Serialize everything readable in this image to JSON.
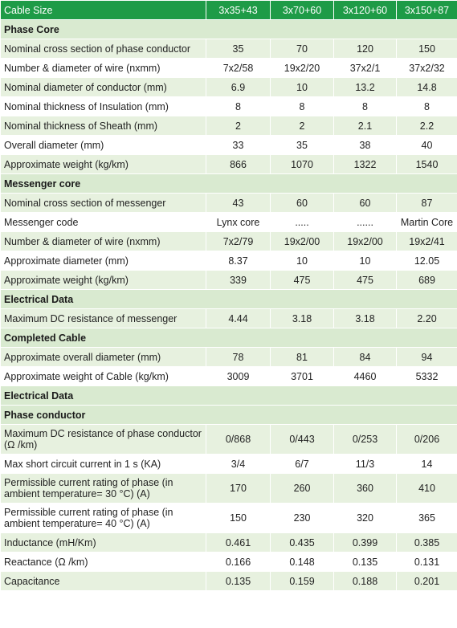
{
  "header": [
    "Cable Size",
    "3x35+43",
    "3x70+60",
    "3x120+60",
    "3x150+87"
  ],
  "rows": [
    {
      "type": "section",
      "label": "Phase Core"
    },
    {
      "type": "data",
      "label": "Nominal cross section of phase conductor",
      "values": [
        "35",
        "70",
        "120",
        "150"
      ]
    },
    {
      "type": "data",
      "label": "Number & diameter of wire (nxmm)",
      "values": [
        "7x2/58",
        "19x2/20",
        "37x2/1",
        "37x2/32"
      ]
    },
    {
      "type": "data",
      "label": "Nominal diameter of conductor (mm)",
      "values": [
        "6.9",
        "10",
        "13.2",
        "14.8"
      ]
    },
    {
      "type": "data",
      "label": "Nominal thickness of Insulation (mm)",
      "values": [
        "8",
        "8",
        "8",
        "8"
      ]
    },
    {
      "type": "data",
      "label": "Nominal thickness of Sheath (mm)",
      "values": [
        "2",
        "2",
        "2.1",
        "2.2"
      ]
    },
    {
      "type": "data",
      "label": "Overall diameter (mm)",
      "values": [
        "33",
        "35",
        "38",
        "40"
      ]
    },
    {
      "type": "data",
      "label": "Approximate weight (kg/km)",
      "values": [
        "866",
        "1070",
        "1322",
        "1540"
      ]
    },
    {
      "type": "section",
      "label": "Messenger core"
    },
    {
      "type": "data",
      "label": "Nominal cross section of messenger",
      "values": [
        "43",
        "60",
        "60",
        "87"
      ]
    },
    {
      "type": "data",
      "label": "Messenger code",
      "values": [
        "Lynx core",
        ".....",
        "......",
        "Martin Core"
      ]
    },
    {
      "type": "data",
      "label": "Number & diameter of wire (nxmm)",
      "values": [
        "7x2/79",
        "19x2/00",
        "19x2/00",
        "19x2/41"
      ]
    },
    {
      "type": "data",
      "label": "Approximate diameter (mm)",
      "values": [
        "8.37",
        "10",
        "10",
        "12.05"
      ]
    },
    {
      "type": "data",
      "label": "Approximate weight (kg/km)",
      "values": [
        "339",
        "475",
        "475",
        "689"
      ]
    },
    {
      "type": "section",
      "label": "Electrical Data"
    },
    {
      "type": "data",
      "label": "Maximum DC resistance of messenger",
      "values": [
        "4.44",
        "3.18",
        "3.18",
        "2.20"
      ]
    },
    {
      "type": "section",
      "label": "Completed Cable"
    },
    {
      "type": "data",
      "label": "Approximate overall diameter (mm)",
      "values": [
        "78",
        "81",
        "84",
        "94"
      ]
    },
    {
      "type": "data",
      "label": "Approximate weight of Cable (kg/km)",
      "values": [
        "3009",
        "3701",
        "4460",
        "5332"
      ]
    },
    {
      "type": "section",
      "label": "Electrical Data"
    },
    {
      "type": "section",
      "label": "Phase conductor"
    },
    {
      "type": "data",
      "tall": true,
      "label": "Maximum DC resistance of phase conductor (Ω /km)",
      "values": [
        "0/868",
        "0/443",
        "0/253",
        "0/206"
      ]
    },
    {
      "type": "data",
      "label": "Max short circuit current in 1 s (KA)",
      "values": [
        "3/4",
        "6/7",
        "11/3",
        "14"
      ]
    },
    {
      "type": "data",
      "tall": true,
      "label": "Permissible current rating of phase (in ambient temperature= 30 °C) (A)",
      "values": [
        "170",
        "260",
        "360",
        "410"
      ]
    },
    {
      "type": "data",
      "tall": true,
      "label": "Permissible current rating of phase (in ambient temperature= 40 °C) (A)",
      "values": [
        "150",
        "230",
        "320",
        "365"
      ]
    },
    {
      "type": "data",
      "label": "Inductance (mH/Km)",
      "values": [
        "0.461",
        "0.435",
        "0.399",
        "0.385"
      ]
    },
    {
      "type": "data",
      "label": "Reactance (Ω /km)",
      "values": [
        "0.166",
        "0.148",
        "0.135",
        "0.131"
      ]
    },
    {
      "type": "data",
      "label": "Capacitance",
      "values": [
        "0.135",
        "0.159",
        "0.188",
        "0.201"
      ]
    }
  ]
}
